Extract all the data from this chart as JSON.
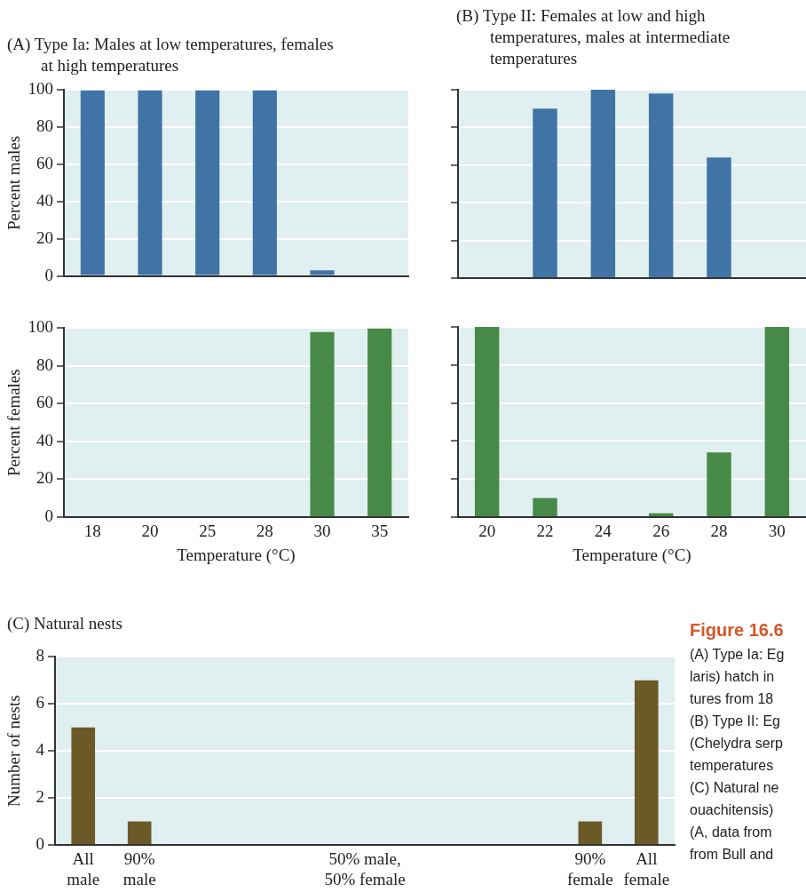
{
  "chart_data": [
    {
      "type": "bar",
      "title": "(A)  Type Ia: Males at low temperatures, females at high temperatures",
      "ylabel": "Percent males",
      "categories": [
        "18",
        "20",
        "25",
        "28",
        "30",
        "35"
      ],
      "values": [
        100,
        100,
        100,
        100,
        3,
        0
      ],
      "color": "#4174a6",
      "ylim": [
        0,
        100
      ],
      "yticks": [
        0,
        20,
        40,
        60,
        80,
        100
      ],
      "grid": "y",
      "tick_labels": "y"
    },
    {
      "type": "bar",
      "title": "(B)  Type II: Females at low and high temperatures, males at intermediate temperatures",
      "categories": [
        "20",
        "22",
        "24",
        "26",
        "28",
        "30"
      ],
      "values": [
        0,
        90,
        100,
        98,
        64,
        0
      ],
      "color": "#4174a6",
      "ylim": [
        0,
        100
      ],
      "yticks": [
        0,
        20,
        40,
        60,
        80,
        100
      ],
      "grid": "y",
      "tick_labels": false
    },
    {
      "type": "bar",
      "ylabel": "Percent females",
      "xlabel": "Temperature (°C)",
      "categories": [
        "18",
        "20",
        "25",
        "28",
        "30",
        "35"
      ],
      "values": [
        0,
        0,
        0,
        0,
        98,
        100
      ],
      "color": "#478a47",
      "ylim": [
        0,
        100
      ],
      "yticks": [
        0,
        20,
        40,
        60,
        80,
        100
      ],
      "grid": "y"
    },
    {
      "type": "bar",
      "xlabel": "Temperature (°C)",
      "categories": [
        "20",
        "22",
        "24",
        "26",
        "28",
        "30"
      ],
      "values": [
        100,
        10,
        0,
        2,
        34,
        100
      ],
      "color": "#478a47",
      "ylim": [
        0,
        100
      ],
      "yticks": [
        0,
        20,
        40,
        60,
        80,
        100
      ],
      "grid": "y",
      "tick_labels": "x"
    },
    {
      "type": "bar",
      "title": "(C)  Natural nests",
      "ylabel": "Number of nests",
      "categories": [
        "All male",
        "90% male",
        null,
        null,
        null,
        "50% male, 50% female",
        null,
        null,
        null,
        "90% female",
        "All female"
      ],
      "values": [
        5,
        1,
        0,
        0,
        0,
        0,
        0,
        0,
        0,
        1,
        7
      ],
      "color": "#6b5a28",
      "ylim": [
        0,
        8
      ],
      "yticks": [
        0,
        2,
        4,
        6,
        8
      ],
      "grid": "y",
      "annotations": [
        "Figure 16.6",
        "(A) Type Ia: Eg",
        "laris) hatch in",
        "tures from 18",
        "(B) Type II: Eg",
        "(Chelydra serp",
        "temperatures",
        "(C) Natural ne",
        "ouachitensis)",
        "(A, data from",
        "from Bull and"
      ]
    }
  ]
}
